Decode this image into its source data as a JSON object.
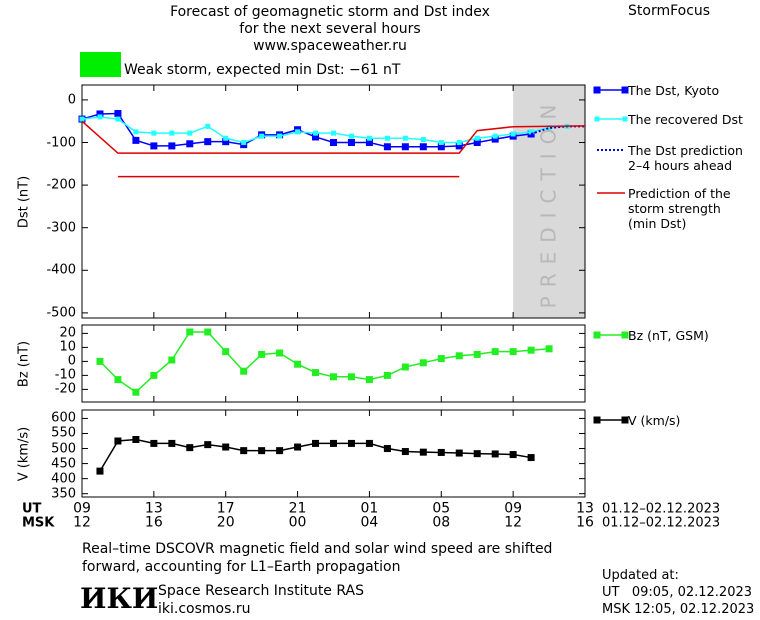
{
  "header": {
    "title": "Forecast of geomagnetic storm and Dst index\nfor the next several hours\nwww.spaceweather.ru",
    "brand": "StormFocus",
    "status": "Weak storm, expected min Dst: −61 nT",
    "status_color": "#00ee00"
  },
  "x_axis": {
    "xlim": [
      0,
      28
    ],
    "rows": [
      {
        "label": "UT",
        "range": "01.12–02.12.2023",
        "ticks": [
          {
            "value": 0,
            "label": "09"
          },
          {
            "value": 4,
            "label": "13"
          },
          {
            "value": 8,
            "label": "17"
          },
          {
            "value": 12,
            "label": "21"
          },
          {
            "value": 16,
            "label": "01"
          },
          {
            "value": 20,
            "label": "05"
          },
          {
            "value": 24,
            "label": "09"
          },
          {
            "value": 28,
            "label": "13"
          }
        ]
      },
      {
        "label": "MSK",
        "range": "01.12–02.12.2023",
        "ticks": [
          {
            "value": 0,
            "label": "12"
          },
          {
            "value": 4,
            "label": "16"
          },
          {
            "value": 8,
            "label": "20"
          },
          {
            "value": 12,
            "label": "00"
          },
          {
            "value": 16,
            "label": "04"
          },
          {
            "value": 20,
            "label": "08"
          },
          {
            "value": 24,
            "label": "12"
          },
          {
            "value": 28,
            "label": "16"
          }
        ]
      }
    ]
  },
  "chart_data": [
    {
      "type": "line",
      "y_label": "Dst (nT)",
      "ylim": [
        -512,
        35
      ],
      "yticks": [
        0,
        -100,
        -200,
        -300,
        -400,
        -500
      ],
      "shade": {
        "x": [
          24,
          28
        ],
        "label": "PREDICTION",
        "color": "#d9d9d9"
      },
      "series": [
        {
          "name": "The Dst, Kyoto",
          "color": "#0000ff",
          "marker": "square",
          "x": [
            0,
            1,
            2,
            3,
            4,
            5,
            6,
            7,
            8,
            9,
            10,
            11,
            12,
            13,
            14,
            15,
            16,
            17,
            18,
            19,
            20,
            21,
            22,
            23,
            24,
            25
          ],
          "values": [
            -45,
            -33,
            -32,
            -95,
            -108,
            -108,
            -103,
            -98,
            -98,
            -105,
            -82,
            -82,
            -70,
            -87,
            -100,
            -100,
            -100,
            -110,
            -110,
            -110,
            -110,
            -108,
            -100,
            -92,
            -85,
            -80
          ]
        },
        {
          "name": "The recovered Dst",
          "color": "#22ffff",
          "marker": "small",
          "x": [
            0,
            1,
            2,
            3,
            4,
            5,
            6,
            7,
            8,
            9,
            10,
            11,
            12,
            13,
            14,
            15,
            16,
            17,
            18,
            19,
            20,
            21,
            22,
            23,
            24,
            25,
            26,
            27
          ],
          "values": [
            -45,
            -40,
            -45,
            -75,
            -78,
            -78,
            -78,
            -62,
            -90,
            -100,
            -85,
            -85,
            -75,
            -78,
            -78,
            -85,
            -90,
            -90,
            -90,
            -93,
            -100,
            -100,
            -90,
            -85,
            -80,
            -75,
            -65,
            -62
          ]
        },
        {
          "name": "The Dst prediction\n2–4 hours ahead",
          "color": "#0000cc",
          "dash": true,
          "x": [
            25,
            26,
            27,
            28
          ],
          "values": [
            -80,
            -66,
            -62,
            -62
          ]
        },
        {
          "name": "Prediction of the\nstorm strength\n(min Dst)",
          "color": "#dd0000",
          "x": [
            0,
            2,
            21,
            22,
            24,
            28
          ],
          "values": [
            -50,
            -125,
            -125,
            -72,
            -63,
            -61
          ]
        },
        {
          "color": "#dd0000",
          "x": [
            2,
            21
          ],
          "values": [
            -180,
            -180
          ]
        }
      ]
    },
    {
      "type": "line",
      "y_label": "Bz (nT)",
      "ylim": [
        -29,
        26
      ],
      "yticks": [
        20,
        10,
        0,
        -10,
        -20
      ],
      "series": [
        {
          "name": "Bz (nT, GSM)",
          "color": "#22ee22",
          "marker": "square",
          "x": [
            1,
            2,
            3,
            4,
            5,
            6,
            7,
            8,
            9,
            10,
            11,
            12,
            13,
            14,
            15,
            16,
            17,
            18,
            19,
            20,
            21,
            22,
            23,
            24,
            25,
            26
          ],
          "values": [
            0,
            -13,
            -22,
            -10,
            1,
            21,
            21,
            7,
            -7,
            5,
            6,
            -2,
            -8,
            -11,
            -11,
            -13,
            -10,
            -4,
            -1,
            2,
            4,
            5,
            7,
            7,
            8,
            9
          ]
        }
      ]
    },
    {
      "type": "line",
      "y_label": "V (km/s)",
      "ylim": [
        339,
        628
      ],
      "yticks": [
        600,
        550,
        500,
        450,
        400,
        350
      ],
      "series": [
        {
          "name": "V (km/s)",
          "color": "#000000",
          "marker": "square",
          "x": [
            1,
            2,
            3,
            4,
            5,
            6,
            7,
            8,
            9,
            10,
            11,
            12,
            13,
            14,
            15,
            16,
            17,
            18,
            19,
            20,
            21,
            22,
            23,
            24,
            25
          ],
          "values": [
            425,
            525,
            530,
            517,
            517,
            503,
            513,
            505,
            493,
            493,
            493,
            505,
            517,
            517,
            517,
            517,
            500,
            490,
            488,
            487,
            485,
            483,
            482,
            480,
            470
          ]
        }
      ]
    }
  ],
  "footer": {
    "note": "Real–time DSCOVR magnetic field and solar wind speed are shifted\nforward, accounting for L1–Earth propagation",
    "logo": "ИКИ",
    "institute": "Space Research Institute RAS",
    "url": "iki.cosmos.ru",
    "updated": "Updated at:",
    "updated_ut": "UT   09:05, 02.12.2023",
    "updated_msk": "MSK 12:05, 02.12.2023"
  }
}
